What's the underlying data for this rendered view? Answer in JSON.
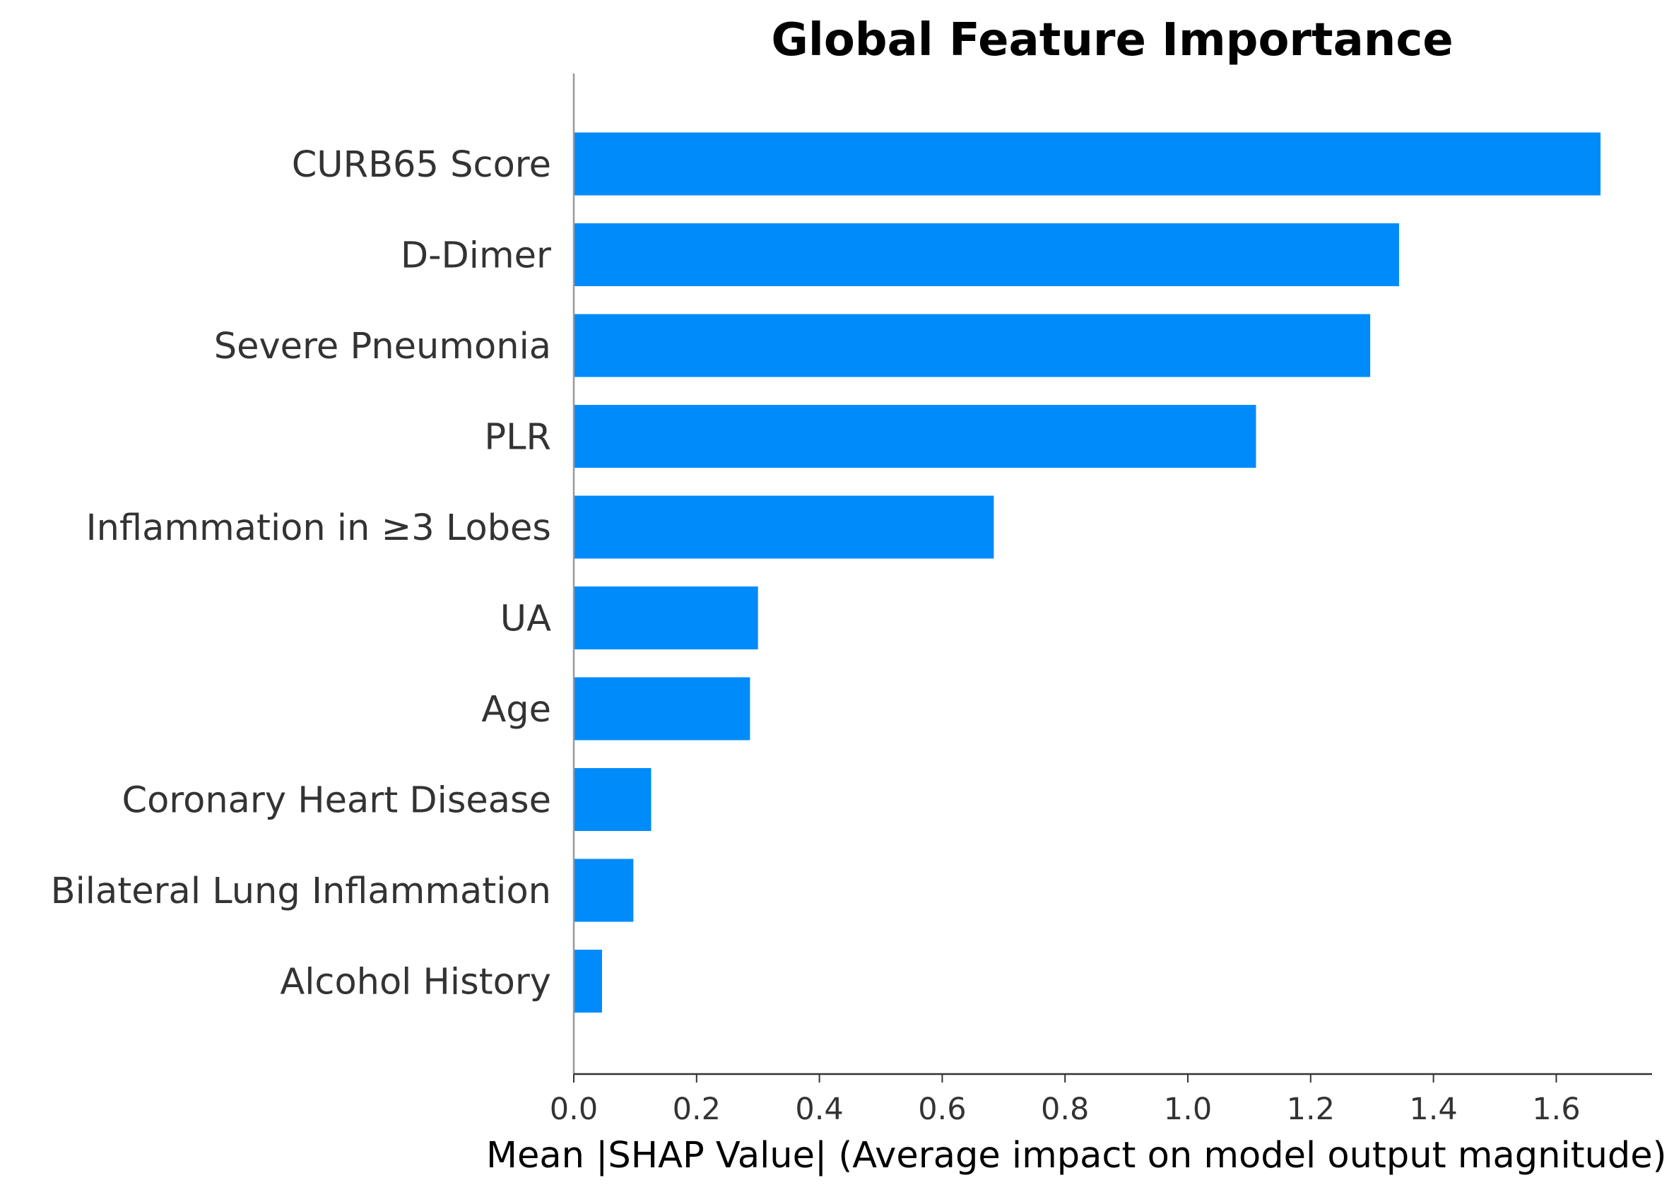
{
  "chart_data": {
    "type": "bar",
    "orientation": "horizontal",
    "title": "Global Feature Importance",
    "xlabel": "Mean |SHAP Value| (Average impact on model output magnitude)",
    "ylabel": "",
    "categories": [
      "CURB65 Score",
      "D-Dimer",
      "Severe Pneumonia",
      "PLR",
      "Inflammation in ≥3 Lobes",
      "UA",
      "Age",
      "Coronary Heart Disease",
      "Bilateral Lung Inflammation",
      "Alcohol History"
    ],
    "values": [
      1.672,
      1.344,
      1.297,
      1.111,
      0.684,
      0.3,
      0.287,
      0.126,
      0.097,
      0.046
    ],
    "xlim": [
      0,
      1.755
    ],
    "xticks": [
      "0.0",
      "0.2",
      "0.4",
      "0.6",
      "0.8",
      "1.0",
      "1.2",
      "1.4",
      "1.6"
    ],
    "bar_color": "#008bfb",
    "grid": false,
    "legend": "none"
  }
}
